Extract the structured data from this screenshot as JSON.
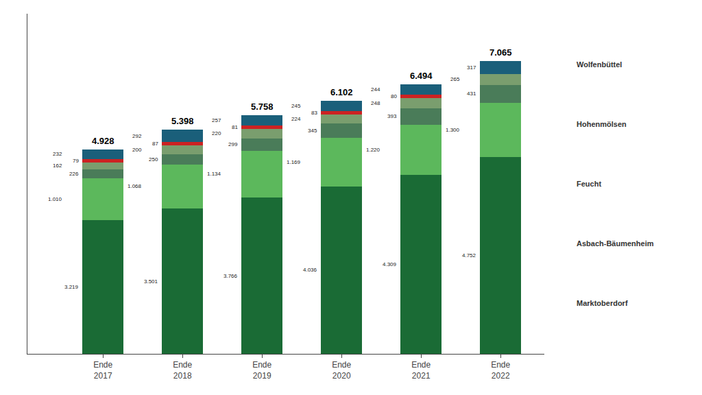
{
  "chart_data": {
    "type": "bar",
    "stacked": true,
    "categories": [
      "Ende\n2017",
      "Ende\n2018",
      "Ende\n2019",
      "Ende\n2020",
      "Ende\n2021",
      "Ende\n2022"
    ],
    "series": [
      {
        "color": "#1a6b35",
        "values": [
          3219,
          3501,
          3766,
          4036,
          4309,
          4752
        ],
        "value_labels": [
          "3.219",
          "3.501",
          "3.766",
          "4.036",
          "4.309",
          "4.752"
        ]
      },
      {
        "color": "#5cb85c",
        "values": [
          1010,
          1068,
          1134,
          1169,
          1220,
          1300
        ],
        "value_labels": [
          "1.010",
          "1.068",
          "1.134",
          "1.169",
          "1.220",
          "1.300"
        ]
      },
      {
        "color": "#4a7c59",
        "values": [
          226,
          250,
          299,
          345,
          393,
          431
        ],
        "value_labels": [
          "226",
          "250",
          "299",
          "345",
          "393",
          "431"
        ]
      },
      {
        "color": "#7a9e6e",
        "values": [
          162,
          200,
          220,
          224,
          248,
          265
        ],
        "value_labels": [
          "162",
          "200",
          "220",
          "224",
          "248",
          "265"
        ]
      },
      {
        "color": "#cc2222",
        "values": [
          79,
          87,
          81,
          83,
          80,
          0
        ],
        "value_labels": [
          "79",
          "87",
          "81",
          "83",
          "80",
          null
        ]
      },
      {
        "color": "#e08020",
        "values": [
          0,
          0,
          0,
          0,
          0,
          0
        ],
        "value_labels": [
          null,
          null,
          null,
          null,
          null,
          null
        ]
      },
      {
        "color": "#1a5f7a",
        "values": [
          232,
          292,
          257,
          245,
          244,
          317
        ],
        "value_labels": [
          "232",
          "292",
          "257",
          "245",
          "244",
          "317"
        ]
      }
    ],
    "totals": [
      4928,
      5398,
      5758,
      6102,
      6494,
      7065
    ],
    "total_labels": [
      "4.928",
      "5.398",
      "5.758",
      "6.102",
      "6.494",
      "7.065"
    ],
    "ylim": [
      0,
      8200
    ],
    "yticks": [],
    "tick_labels": "x",
    "grid": false,
    "data_labels": true,
    "annotations": [
      "Wolfenbüttel",
      "Hohenmölsen",
      "Feucht",
      "Asbach-Bäumenheim",
      "Marktoberdorf"
    ]
  }
}
